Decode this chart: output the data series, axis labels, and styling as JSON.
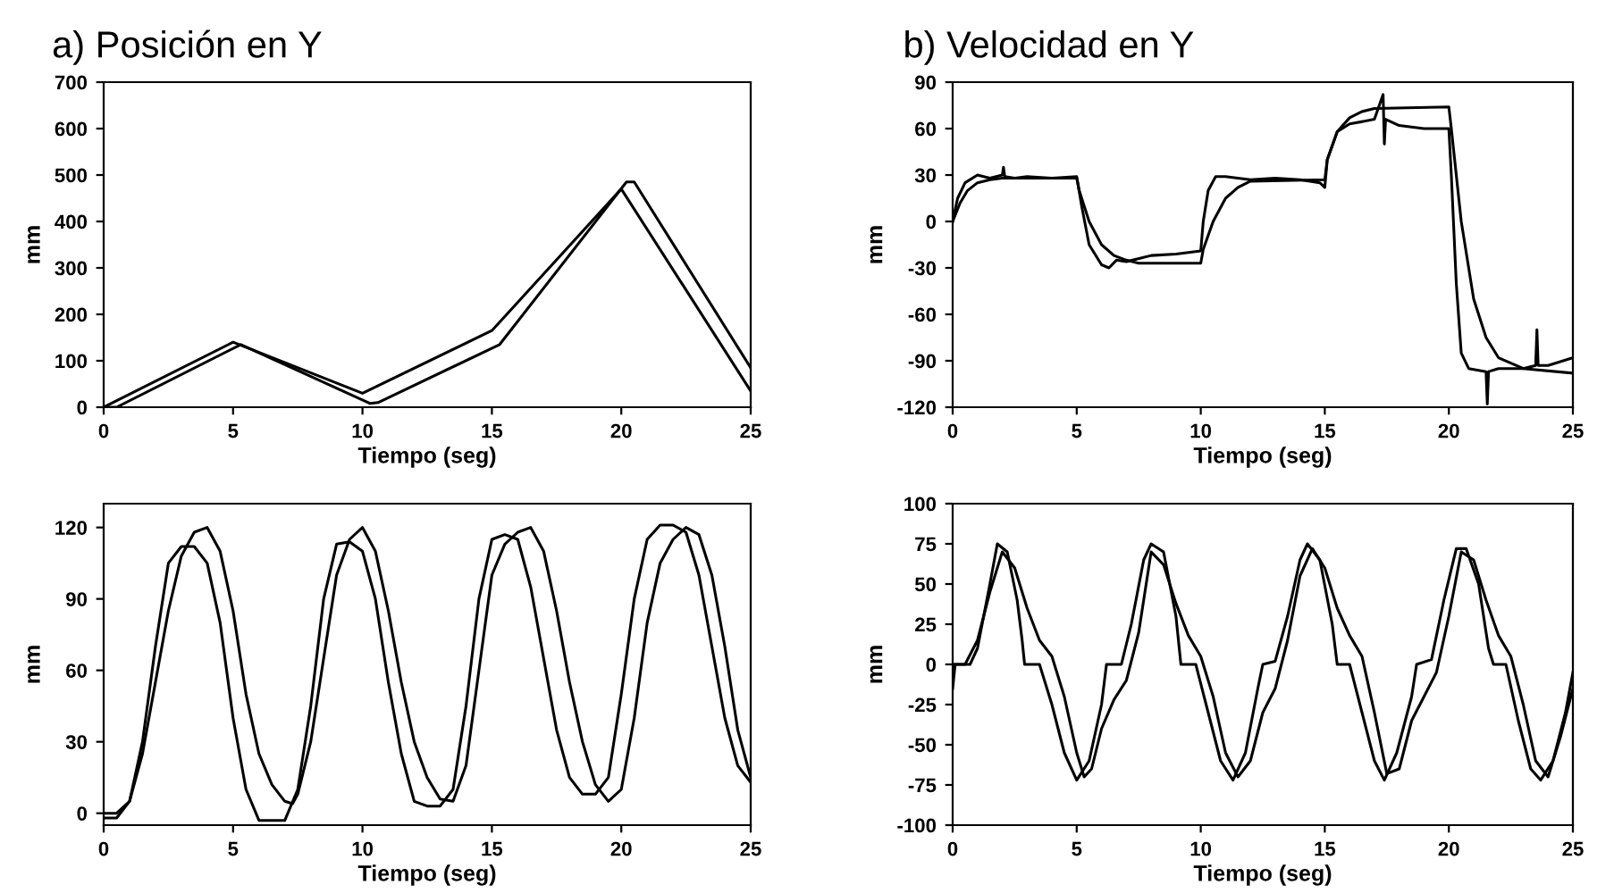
{
  "chart_data": [
    {
      "type": "line",
      "title": "a) Posición en Y",
      "xlabel": "Tiempo (seg)",
      "ylabel": "mm",
      "xlim": [
        0,
        25
      ],
      "xticks": [
        0,
        5,
        10,
        15,
        20,
        25
      ],
      "ylim": [
        0,
        700
      ],
      "yticks": [
        0,
        100,
        200,
        300,
        400,
        500,
        600,
        700
      ],
      "grid": false,
      "legend": false,
      "series": [
        {
          "color": "#000000",
          "x": [
            0,
            5,
            10,
            15,
            20,
            25
          ],
          "values": [
            0,
            140,
            30,
            165,
            470,
            35
          ]
        },
        {
          "color": "#000000",
          "x": [
            0,
            0.5,
            5.3,
            10.3,
            10.6,
            15.3,
            20.2,
            20.5,
            25
          ],
          "values": [
            0,
            0,
            135,
            8,
            10,
            135,
            485,
            485,
            85
          ]
        }
      ]
    },
    {
      "type": "line",
      "title": "b) Velocidad en Y",
      "xlabel": "Tiempo (seg)",
      "ylabel": "mm",
      "xlim": [
        0,
        25
      ],
      "xticks": [
        0,
        5,
        10,
        15,
        20,
        25
      ],
      "ylim": [
        -120,
        90
      ],
      "yticks": [
        -120,
        -90,
        -60,
        -30,
        0,
        30,
        60,
        90
      ],
      "grid": false,
      "legend": false,
      "series": [
        {
          "color": "#000000",
          "x": [
            0,
            0.3,
            0.6,
            1,
            1.5,
            2,
            5,
            5.1,
            5.5,
            6,
            6.5,
            7,
            7.5,
            10,
            10.1,
            10.5,
            11,
            11.5,
            12,
            15,
            15.1,
            15.5,
            16,
            16.5,
            17,
            20,
            20.1,
            20.5,
            21,
            21.5,
            22,
            23,
            25
          ],
          "values": [
            0,
            12,
            20,
            25,
            27,
            28,
            28,
            20,
            0,
            -15,
            -22,
            -25,
            -27,
            -27,
            -18,
            0,
            15,
            22,
            26,
            27,
            40,
            58,
            67,
            71,
            73,
            74,
            60,
            0,
            -50,
            -75,
            -88,
            -95,
            -98
          ]
        },
        {
          "color": "#000000",
          "x": [
            0,
            0.2,
            0.5,
            1,
            1.5,
            2,
            2.05,
            2.1,
            2.5,
            3,
            4,
            5,
            5.2,
            5.5,
            6,
            6.3,
            6.6,
            7,
            8,
            9,
            10,
            10.1,
            10.3,
            10.6,
            11,
            12,
            13,
            14,
            14.8,
            15,
            15.1,
            15.5,
            16,
            17,
            17.35,
            17.4,
            17.45,
            18,
            19,
            20,
            20.1,
            20.3,
            20.5,
            20.8,
            21.5,
            21.55,
            21.6,
            22,
            23,
            23.5,
            23.55,
            23.6,
            24,
            25
          ],
          "values": [
            0,
            15,
            25,
            30,
            28,
            30,
            35,
            29,
            28,
            29,
            28,
            29,
            10,
            -15,
            -28,
            -30,
            -25,
            -26,
            -22,
            -21,
            -19,
            0,
            20,
            29,
            29,
            27,
            28,
            27,
            25,
            22,
            40,
            58,
            63,
            66,
            82,
            50,
            66,
            62,
            60,
            60,
            30,
            -40,
            -85,
            -95,
            -97,
            -118,
            -97,
            -95,
            -95,
            -93,
            -70,
            -93,
            -93,
            -88
          ]
        }
      ]
    },
    {
      "type": "line",
      "xlabel": "Tiempo (seg)",
      "ylabel": "mm",
      "xlim": [
        0,
        25
      ],
      "xticks": [
        0,
        5,
        10,
        15,
        20,
        25
      ],
      "ylim": [
        -5,
        130
      ],
      "yticks": [
        0,
        30,
        60,
        90,
        120
      ],
      "grid": false,
      "legend": false,
      "series": [
        {
          "color": "#000000",
          "x": [
            0,
            0.5,
            1,
            1.5,
            2,
            2.5,
            3,
            3.5,
            4,
            4.5,
            5,
            5.5,
            6,
            6.5,
            7,
            7.5,
            8,
            8.5,
            9,
            9.5,
            10,
            10.5,
            11,
            11.5,
            12,
            12.5,
            13,
            13.5,
            14,
            14.5,
            15,
            15.5,
            16,
            16.5,
            17,
            17.5,
            18,
            18.5,
            19,
            19.5,
            20,
            20.5,
            21,
            21.5,
            22,
            22.5,
            23,
            23.5,
            24,
            24.5,
            25
          ],
          "values": [
            -2,
            -2,
            5,
            30,
            70,
            105,
            112,
            112,
            105,
            80,
            40,
            10,
            -3,
            -3,
            -3,
            10,
            45,
            90,
            113,
            114,
            110,
            90,
            55,
            25,
            5,
            3,
            3,
            10,
            45,
            90,
            115,
            117,
            115,
            95,
            65,
            35,
            15,
            8,
            8,
            15,
            50,
            90,
            115,
            121,
            121,
            118,
            100,
            70,
            40,
            20,
            13
          ]
        },
        {
          "color": "#000000",
          "x": [
            0,
            0.5,
            1,
            1.5,
            2,
            2.5,
            3,
            3.5,
            4,
            4.5,
            5,
            5.5,
            6,
            6.5,
            7,
            7.3,
            7.5,
            8,
            8.5,
            9,
            9.5,
            10,
            10.5,
            11,
            11.5,
            12,
            12.5,
            13,
            13.5,
            14,
            14.5,
            15,
            15.5,
            16,
            16.5,
            17,
            17.5,
            18,
            18.5,
            19,
            19.5,
            20,
            20.5,
            21,
            21.5,
            22,
            22.5,
            23,
            23.5,
            24,
            24.5,
            25
          ],
          "values": [
            0,
            0,
            5,
            25,
            55,
            85,
            108,
            118,
            120,
            110,
            85,
            50,
            25,
            12,
            5,
            4,
            8,
            30,
            65,
            100,
            115,
            120,
            110,
            85,
            55,
            30,
            15,
            6,
            5,
            20,
            60,
            100,
            113,
            118,
            120,
            110,
            85,
            55,
            30,
            12,
            5,
            10,
            40,
            80,
            105,
            115,
            120,
            117,
            100,
            70,
            35,
            15
          ]
        }
      ]
    },
    {
      "type": "line",
      "xlabel": "Tiempo (seg)",
      "ylabel": "mm",
      "xlim": [
        0,
        25
      ],
      "xticks": [
        0,
        5,
        10,
        15,
        20,
        25
      ],
      "ylim": [
        -100,
        100
      ],
      "yticks": [
        -100,
        -75,
        -50,
        -25,
        0,
        25,
        50,
        75,
        100
      ],
      "grid": false,
      "legend": false,
      "series": [
        {
          "color": "#000000",
          "x": [
            0,
            0.5,
            1,
            1.5,
            2,
            2.5,
            3,
            3.5,
            4,
            4.5,
            5,
            5.3,
            5.6,
            6,
            6.5,
            7,
            7.5,
            8,
            8.5,
            9,
            9.5,
            10,
            10.5,
            11,
            11.5,
            12,
            12.5,
            13,
            13.5,
            14,
            14.5,
            15,
            15.5,
            16,
            16.5,
            17,
            17.5,
            18,
            18.5,
            19,
            19.5,
            20,
            20.5,
            21,
            21.5,
            22,
            22.5,
            23,
            23.5,
            24,
            24.5,
            25
          ],
          "values": [
            0,
            0,
            15,
            45,
            70,
            60,
            35,
            15,
            5,
            -20,
            -55,
            -70,
            -65,
            -40,
            -22,
            -10,
            20,
            70,
            62,
            38,
            18,
            5,
            -20,
            -55,
            -70,
            -60,
            -30,
            -15,
            15,
            55,
            72,
            60,
            35,
            18,
            5,
            -30,
            -68,
            -65,
            -35,
            -20,
            -5,
            30,
            70,
            65,
            40,
            18,
            5,
            -25,
            -60,
            -70,
            -45,
            -15
          ]
        },
        {
          "color": "#000000",
          "x": [
            0,
            0.1,
            0.7,
            1,
            1.5,
            1.8,
            2.2,
            2.6,
            2.8,
            2.9,
            3.5,
            4,
            4.5,
            5,
            5.5,
            6,
            6.2,
            6.8,
            7.2,
            7.7,
            8,
            8.5,
            9,
            9.2,
            9.8,
            10.3,
            10.8,
            11.3,
            11.8,
            12.3,
            12.5,
            13,
            13.5,
            14,
            14.3,
            14.8,
            15.3,
            15.5,
            16,
            16.5,
            17,
            17.4,
            17.9,
            18.5,
            18.7,
            19.3,
            19.8,
            20.3,
            20.7,
            21.2,
            21.6,
            21.8,
            22.3,
            22.8,
            23.3,
            23.7,
            24.2,
            24.7,
            25
          ],
          "values": [
            -15,
            0,
            0,
            10,
            50,
            75,
            70,
            40,
            15,
            0,
            0,
            -25,
            -55,
            -72,
            -60,
            -25,
            0,
            0,
            25,
            65,
            75,
            70,
            30,
            0,
            0,
            -30,
            -60,
            -72,
            -55,
            -15,
            0,
            2,
            30,
            65,
            75,
            65,
            25,
            0,
            0,
            -30,
            -60,
            -72,
            -55,
            -20,
            0,
            3,
            40,
            72,
            72,
            50,
            10,
            0,
            0,
            -35,
            -65,
            -72,
            -60,
            -30,
            -5
          ]
        }
      ]
    }
  ]
}
